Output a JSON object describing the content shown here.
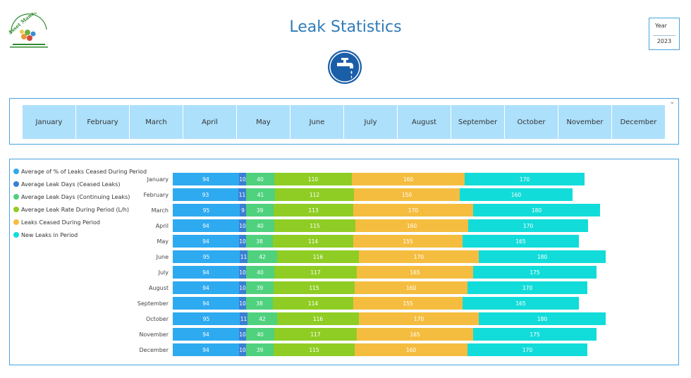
{
  "header": {
    "title": "Leak Statistics",
    "logo_text": "Asset Management",
    "logo_icon": "asset-management-logo",
    "tap_icon": "water-tap-icon"
  },
  "year_filter": {
    "label": "Year",
    "value": "2023"
  },
  "month_slicer": {
    "months": [
      "January",
      "February",
      "March",
      "April",
      "May",
      "June",
      "July",
      "August",
      "September",
      "October",
      "November",
      "December"
    ],
    "chevron_icon": "chevron-down-icon"
  },
  "chart_data": {
    "type": "bar",
    "orientation": "horizontal",
    "stacked": true,
    "categories": [
      "January",
      "February",
      "March",
      "April",
      "May",
      "June",
      "July",
      "August",
      "September",
      "October",
      "November",
      "December"
    ],
    "series": [
      {
        "name": "Average of % of Leaks Ceased During Period",
        "color": "#2eaaf0",
        "values": [
          94,
          93,
          95,
          94,
          94,
          95,
          94,
          94,
          94,
          95,
          94,
          94
        ]
      },
      {
        "name": "Average Leak Days (Ceased Leaks)",
        "color": "#3a7fd4",
        "values": [
          10,
          11,
          9,
          10,
          10,
          11,
          10,
          10,
          10,
          11,
          10,
          10
        ]
      },
      {
        "name": "Average Leak Days (Continuing Leaks)",
        "color": "#4fd17e",
        "values": [
          40,
          41,
          39,
          40,
          38,
          42,
          40,
          39,
          38,
          42,
          40,
          39
        ]
      },
      {
        "name": "Average Leak Rate During Period (L/h)",
        "color": "#8fcd24",
        "values": [
          110,
          112,
          113,
          115,
          114,
          116,
          117,
          115,
          114,
          116,
          117,
          115
        ]
      },
      {
        "name": "Leaks Ceased During Period",
        "color": "#f5bd3f",
        "values": [
          160,
          150,
          170,
          160,
          155,
          170,
          165,
          160,
          155,
          170,
          165,
          160
        ]
      },
      {
        "name": "New Leaks in Period",
        "color": "#12dcd9",
        "values": [
          170,
          160,
          180,
          170,
          165,
          180,
          175,
          170,
          165,
          180,
          175,
          170
        ]
      }
    ],
    "legend_position": "top-left",
    "grid": false
  }
}
